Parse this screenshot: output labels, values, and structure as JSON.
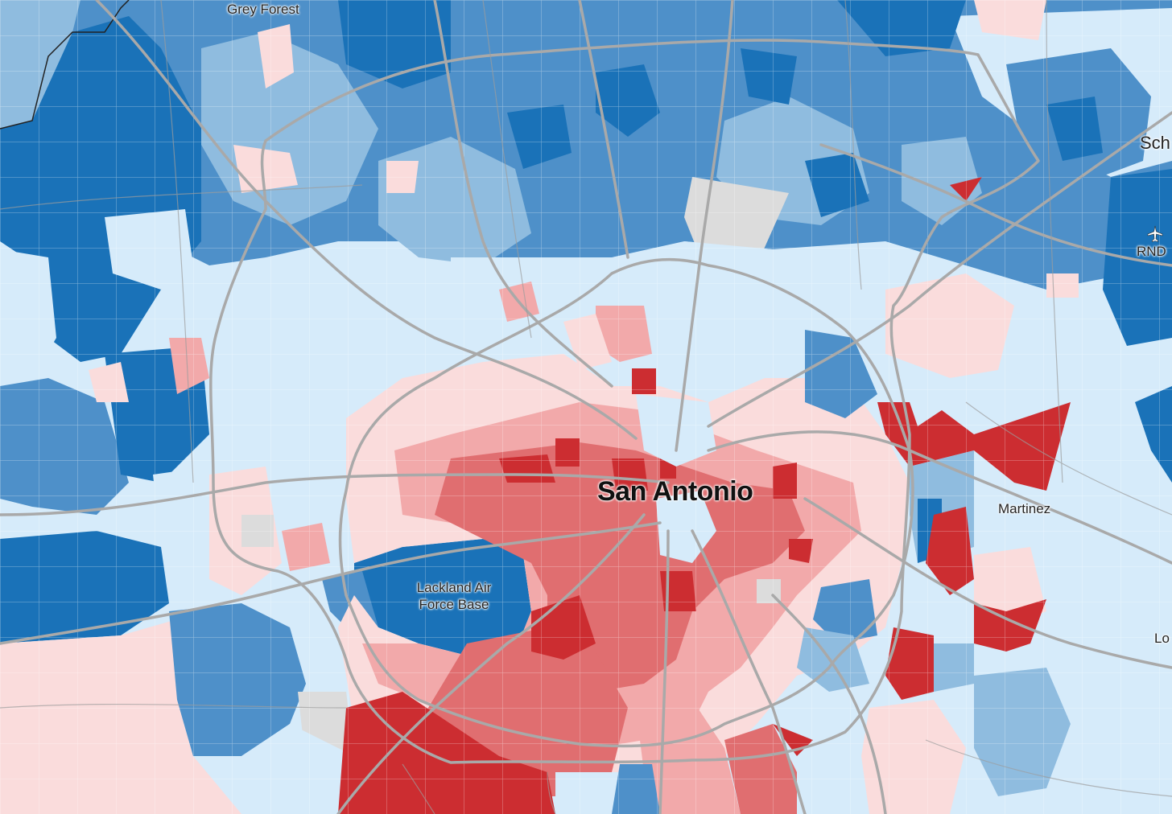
{
  "map": {
    "colors": {
      "dark_blue": "#1a72b8",
      "mid_blue": "#4e90c9",
      "light_blue": "#8fbcdf",
      "pale_blue": "#d6ebfa",
      "pale_red": "#fadcdc",
      "light_red": "#f2a9aa",
      "mid_red": "#e06e70",
      "dark_red": "#cc2d31",
      "no_data": "#dcdcdc",
      "roads": "#a9a9a9"
    },
    "labels": {
      "city": "San Antonio",
      "grey_forest": "Grey Forest",
      "martinez": "Martinez",
      "lackland_line1": "Lackland Air",
      "lackland_line2": "Force Base",
      "schertz_partial": "Sch",
      "rnd": "RND",
      "lo_partial": "Lo"
    },
    "icons": {
      "airport": "airplane-icon"
    }
  }
}
